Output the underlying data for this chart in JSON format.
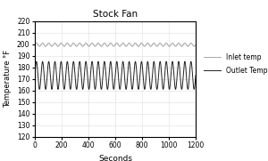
{
  "title": "Stock Fan",
  "xlabel": "Seconds",
  "ylabel": "Temperature °F",
  "xlim": [
    0,
    1200
  ],
  "ylim": [
    120,
    220
  ],
  "yticks": [
    120,
    130,
    140,
    150,
    160,
    170,
    180,
    190,
    200,
    210,
    220
  ],
  "xticks": [
    0,
    200,
    400,
    600,
    800,
    1000,
    1200
  ],
  "inlet_color": "#999999",
  "outlet_color": "#222222",
  "inlet_mean": 199.5,
  "inlet_amp": 1.5,
  "outlet_mean": 173,
  "outlet_amp": 12,
  "n_cycles": 26,
  "duration": 1200,
  "n_points": 4000,
  "legend_inlet": "Inlet temp",
  "legend_outlet": "Outlet Temp",
  "background_color": "#ffffff",
  "grid_color": "#dddddd"
}
